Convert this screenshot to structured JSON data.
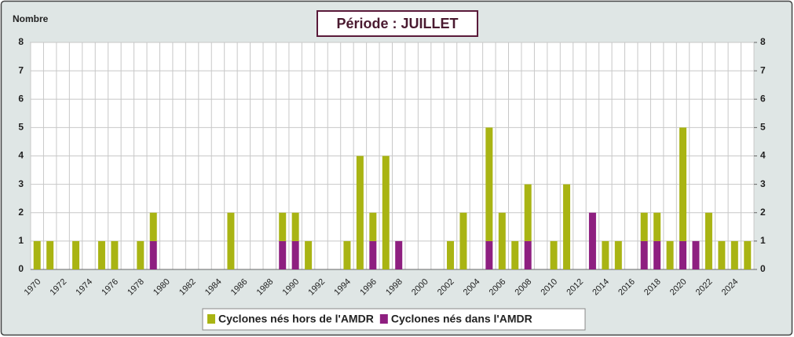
{
  "chart_data": {
    "type": "stacked-bar",
    "title": "Période : JUILLET",
    "y_axis_label": "Nombre",
    "categories": [
      "1970",
      null,
      "1972",
      null,
      "1974",
      null,
      "1976",
      null,
      "1978",
      null,
      "1980",
      null,
      "1982",
      null,
      "1984",
      null,
      "1986",
      null,
      "1988",
      null,
      "1990",
      null,
      "1992",
      null,
      "1994",
      null,
      "1996",
      null,
      "1998",
      null,
      "2000",
      null,
      "2002",
      null,
      "2004",
      null,
      "2006",
      null,
      "2008",
      null,
      "2010",
      null,
      "2012",
      null,
      "2014",
      null,
      "2016",
      null,
      "2018",
      null,
      "2020",
      null,
      "2022",
      null,
      "2024",
      null
    ],
    "series": [
      {
        "name": "Cyclones nés dans l'AMDR",
        "color": "#8e1f80",
        "values": [
          0,
          0,
          0,
          0,
          0,
          0,
          0,
          0,
          0,
          1,
          0,
          0,
          0,
          0,
          0,
          0,
          0,
          0,
          0,
          1,
          1,
          0,
          0,
          0,
          0,
          0,
          1,
          0,
          1,
          0,
          0,
          0,
          0,
          0,
          0,
          1,
          0,
          0,
          1,
          0,
          0,
          0,
          0,
          2,
          0,
          0,
          0,
          1,
          1,
          0,
          1,
          1,
          0,
          0,
          0,
          0
        ]
      },
      {
        "name": "Cyclones nés hors de l'AMDR",
        "color": "#a9b413",
        "values": [
          1,
          1,
          0,
          1,
          0,
          1,
          1,
          0,
          1,
          1,
          0,
          0,
          0,
          0,
          0,
          2,
          0,
          0,
          0,
          1,
          1,
          1,
          0,
          0,
          1,
          4,
          1,
          4,
          0,
          0,
          0,
          0,
          1,
          2,
          0,
          4,
          2,
          1,
          2,
          0,
          1,
          3,
          0,
          0,
          1,
          1,
          0,
          1,
          1,
          1,
          4,
          0,
          2,
          1,
          1,
          1
        ]
      }
    ],
    "legend_order": [
      1,
      0
    ],
    "ylim": [
      0,
      8
    ],
    "yticks": [
      0,
      1,
      2,
      3,
      4,
      5,
      6,
      7,
      8
    ],
    "y2lim": [
      0,
      8
    ],
    "y2ticks": [
      0,
      1,
      2,
      3,
      4,
      5,
      6,
      7,
      8
    ],
    "grid": true
  }
}
